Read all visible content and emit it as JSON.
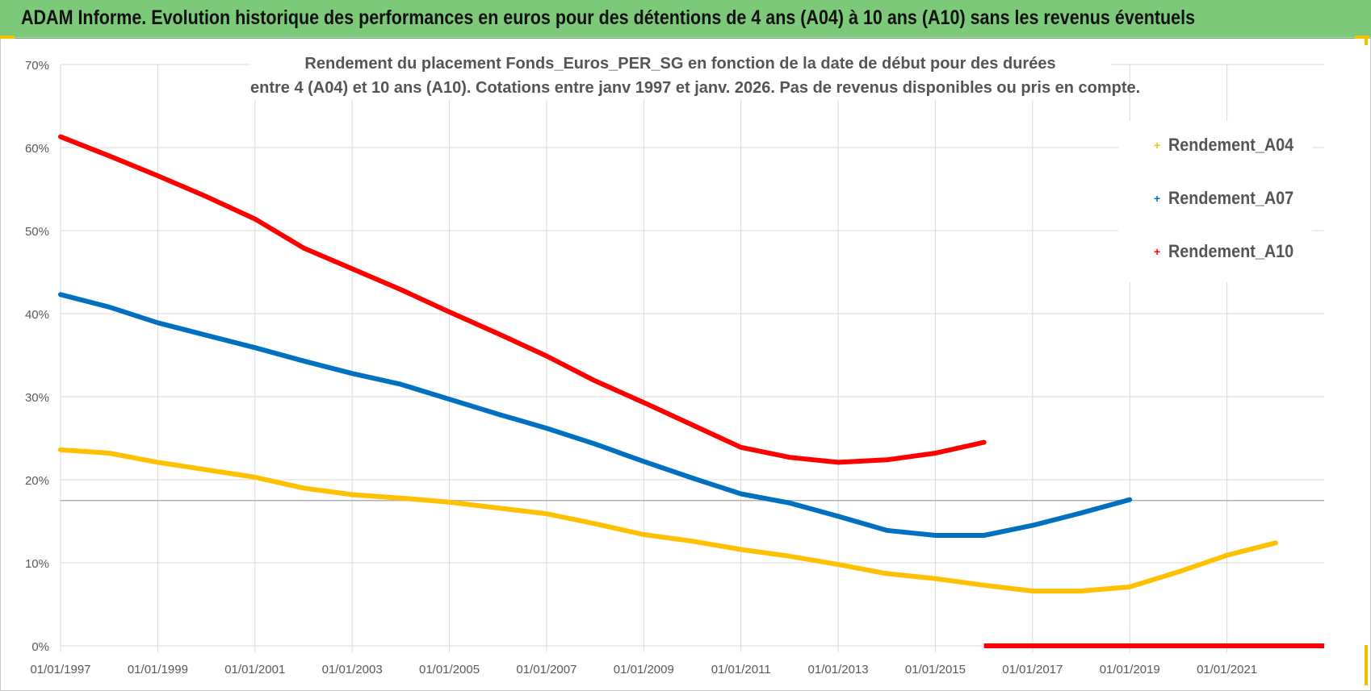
{
  "header": {
    "title": "ADAM Informe. Evolution historique des performances en euros pour des détentions de 4 ans (A04) à 10 ans (A10) sans les revenus éventuels"
  },
  "chart_data": {
    "type": "line",
    "title_line1": "Rendement du placement Fonds_Euros_PER_SG en fonction de la date de début pour des durées",
    "title_line2": "entre 4 (A04) et 10 ans (A10).  Cotations entre janv 1997 et janv. 2026. Pas de revenus disponibles ou pris en compte.",
    "xlabel": "",
    "ylabel": "",
    "x_range": [
      1997,
      2023.0
    ],
    "ylim": [
      0,
      70
    ],
    "y_ticks": [
      0,
      10,
      20,
      30,
      40,
      50,
      60,
      70
    ],
    "y_tick_labels": [
      "0%",
      "10%",
      "20%",
      "30%",
      "40%",
      "50%",
      "60%",
      "70%"
    ],
    "x_ticks": [
      1997,
      1999,
      2001,
      2003,
      2005,
      2007,
      2009,
      2011,
      2013,
      2015,
      2017,
      2019,
      2021
    ],
    "x_tick_labels": [
      "01/01/1997",
      "01/01/1999",
      "01/01/2001",
      "01/01/2003",
      "01/01/2005",
      "01/01/2007",
      "01/01/2009",
      "01/01/2011",
      "01/01/2013",
      "01/01/2015",
      "01/01/2017",
      "01/01/2019",
      "01/01/2021"
    ],
    "reference_line": 17.5,
    "grid": true,
    "legend_position": "top-right",
    "series": [
      {
        "name": "Rendement_A04",
        "color": "#ffc000",
        "x": [
          1997,
          1998,
          1999,
          2000,
          2001,
          2002,
          2003,
          2004,
          2005,
          2006,
          2007,
          2008,
          2009,
          2010,
          2011,
          2012,
          2013,
          2014,
          2015,
          2016,
          2017,
          2018,
          2019,
          2020,
          2021,
          2022
        ],
        "values": [
          23.6,
          23.2,
          22.1,
          21.2,
          20.3,
          19.0,
          18.2,
          17.8,
          17.3,
          16.6,
          15.9,
          14.7,
          13.4,
          12.6,
          11.6,
          10.8,
          9.8,
          8.7,
          8.1,
          7.3,
          6.6,
          6.6,
          7.1,
          8.9,
          10.9,
          12.4
        ]
      },
      {
        "name": "Rendement_A07",
        "color": "#0070c0",
        "x": [
          1997,
          1998,
          1999,
          2000,
          2001,
          2002,
          2003,
          2004,
          2005,
          2006,
          2007,
          2008,
          2009,
          2010,
          2011,
          2012,
          2013,
          2014,
          2015,
          2016,
          2017,
          2018,
          2019
        ],
        "values": [
          42.3,
          40.8,
          38.9,
          37.4,
          35.9,
          34.3,
          32.8,
          31.5,
          29.7,
          27.9,
          26.2,
          24.3,
          22.2,
          20.2,
          18.3,
          17.2,
          15.6,
          13.9,
          13.3,
          13.3,
          14.5,
          16.0,
          17.6
        ]
      },
      {
        "name": "Rendement_A10",
        "color": "#ff0000",
        "x": [
          1997,
          1998,
          1999,
          2000,
          2001,
          2002,
          2003,
          2004,
          2005,
          2006,
          2007,
          2008,
          2009,
          2010,
          2011,
          2012,
          2013,
          2014,
          2015,
          2016
        ],
        "values": [
          61.3,
          59.0,
          56.6,
          54.1,
          51.4,
          47.9,
          45.4,
          42.9,
          40.2,
          37.6,
          34.9,
          31.9,
          29.3,
          26.6,
          23.9,
          22.7,
          22.1,
          22.4,
          23.2,
          24.5
        ],
        "zero_segment": [
          2016,
          2023.0
        ]
      }
    ]
  },
  "colors": {
    "header_bg": "#7dc97a",
    "grid": "#d9d9d9",
    "axis_text": "#595959",
    "corner": "#f2c200"
  }
}
